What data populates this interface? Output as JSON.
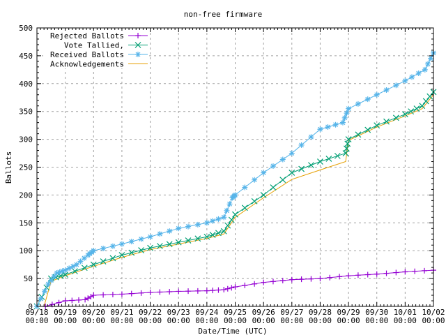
{
  "chart_data": {
    "type": "line",
    "title": "non-free firmware",
    "xlabel": "Date/Time (UTC)",
    "ylabel": "Ballots",
    "xlim": [
      0,
      14
    ],
    "ylim": [
      0,
      500
    ],
    "yticks": [
      0,
      50,
      100,
      150,
      200,
      250,
      300,
      350,
      400,
      450,
      500
    ],
    "xticks": [
      [
        "09/18",
        "00:00"
      ],
      [
        "09/19",
        "00:00"
      ],
      [
        "09/20",
        "00:00"
      ],
      [
        "09/21",
        "00:00"
      ],
      [
        "09/22",
        "00:00"
      ],
      [
        "09/23",
        "00:00"
      ],
      [
        "09/24",
        "00:00"
      ],
      [
        "09/25",
        "00:00"
      ],
      [
        "09/26",
        "00:00"
      ],
      [
        "09/27",
        "00:00"
      ],
      [
        "09/28",
        "00:00"
      ],
      [
        "09/29",
        "00:00"
      ],
      [
        "09/30",
        "00:00"
      ],
      [
        "10/01",
        "00:00"
      ],
      [
        "10/02",
        "00:00"
      ]
    ],
    "x_unit_note": "x values are days after 09/18 00:00 UTC",
    "grid": true,
    "legend_position": "top-left",
    "series": [
      {
        "name": "Rejected Ballots",
        "color": "#9400d3",
        "marker": "plus",
        "x": [
          0.3,
          1,
          1.7,
          2,
          3,
          4,
          5,
          6,
          6.6,
          7,
          8,
          9,
          10,
          11,
          12,
          13,
          14
        ],
        "y": [
          0,
          10,
          12,
          20,
          22,
          25,
          27,
          28,
          30,
          35,
          43,
          48,
          50,
          55,
          58,
          62,
          65
        ]
      },
      {
        "name": "Vote Tallied,",
        "color": "#009e73",
        "marker": "cross",
        "x": [
          0,
          0.5,
          1,
          2,
          3,
          4,
          5,
          6,
          6.6,
          7,
          8,
          9,
          10,
          10.9,
          11,
          12,
          13,
          13.6,
          14
        ],
        "y": [
          0,
          50,
          57,
          75,
          92,
          105,
          115,
          125,
          135,
          165,
          200,
          240,
          260,
          275,
          300,
          325,
          345,
          360,
          385
        ]
      },
      {
        "name": "Received Ballots",
        "color": "#56b4e9",
        "marker": "star",
        "x": [
          0,
          0.4,
          0.7,
          1,
          1.4,
          1.8,
          2,
          3,
          4,
          5,
          6,
          6.6,
          6.9,
          7,
          8,
          9,
          10,
          10.8,
          11,
          12,
          13,
          13.7,
          14
        ],
        "y": [
          0,
          40,
          60,
          65,
          75,
          92,
          100,
          112,
          125,
          140,
          150,
          160,
          195,
          200,
          240,
          275,
          318,
          330,
          355,
          380,
          405,
          425,
          455
        ]
      },
      {
        "name": "Acknowledgements",
        "color": "#e69f00",
        "marker": "none",
        "x": [
          0.25,
          0.5,
          1,
          2,
          3,
          4,
          5,
          6,
          6.6,
          7,
          8,
          9,
          10,
          10.9,
          11,
          12,
          13,
          13.6,
          14
        ],
        "y": [
          0,
          45,
          55,
          72,
          88,
          102,
          112,
          122,
          130,
          160,
          195,
          228,
          245,
          260,
          298,
          322,
          342,
          355,
          380
        ]
      }
    ]
  }
}
